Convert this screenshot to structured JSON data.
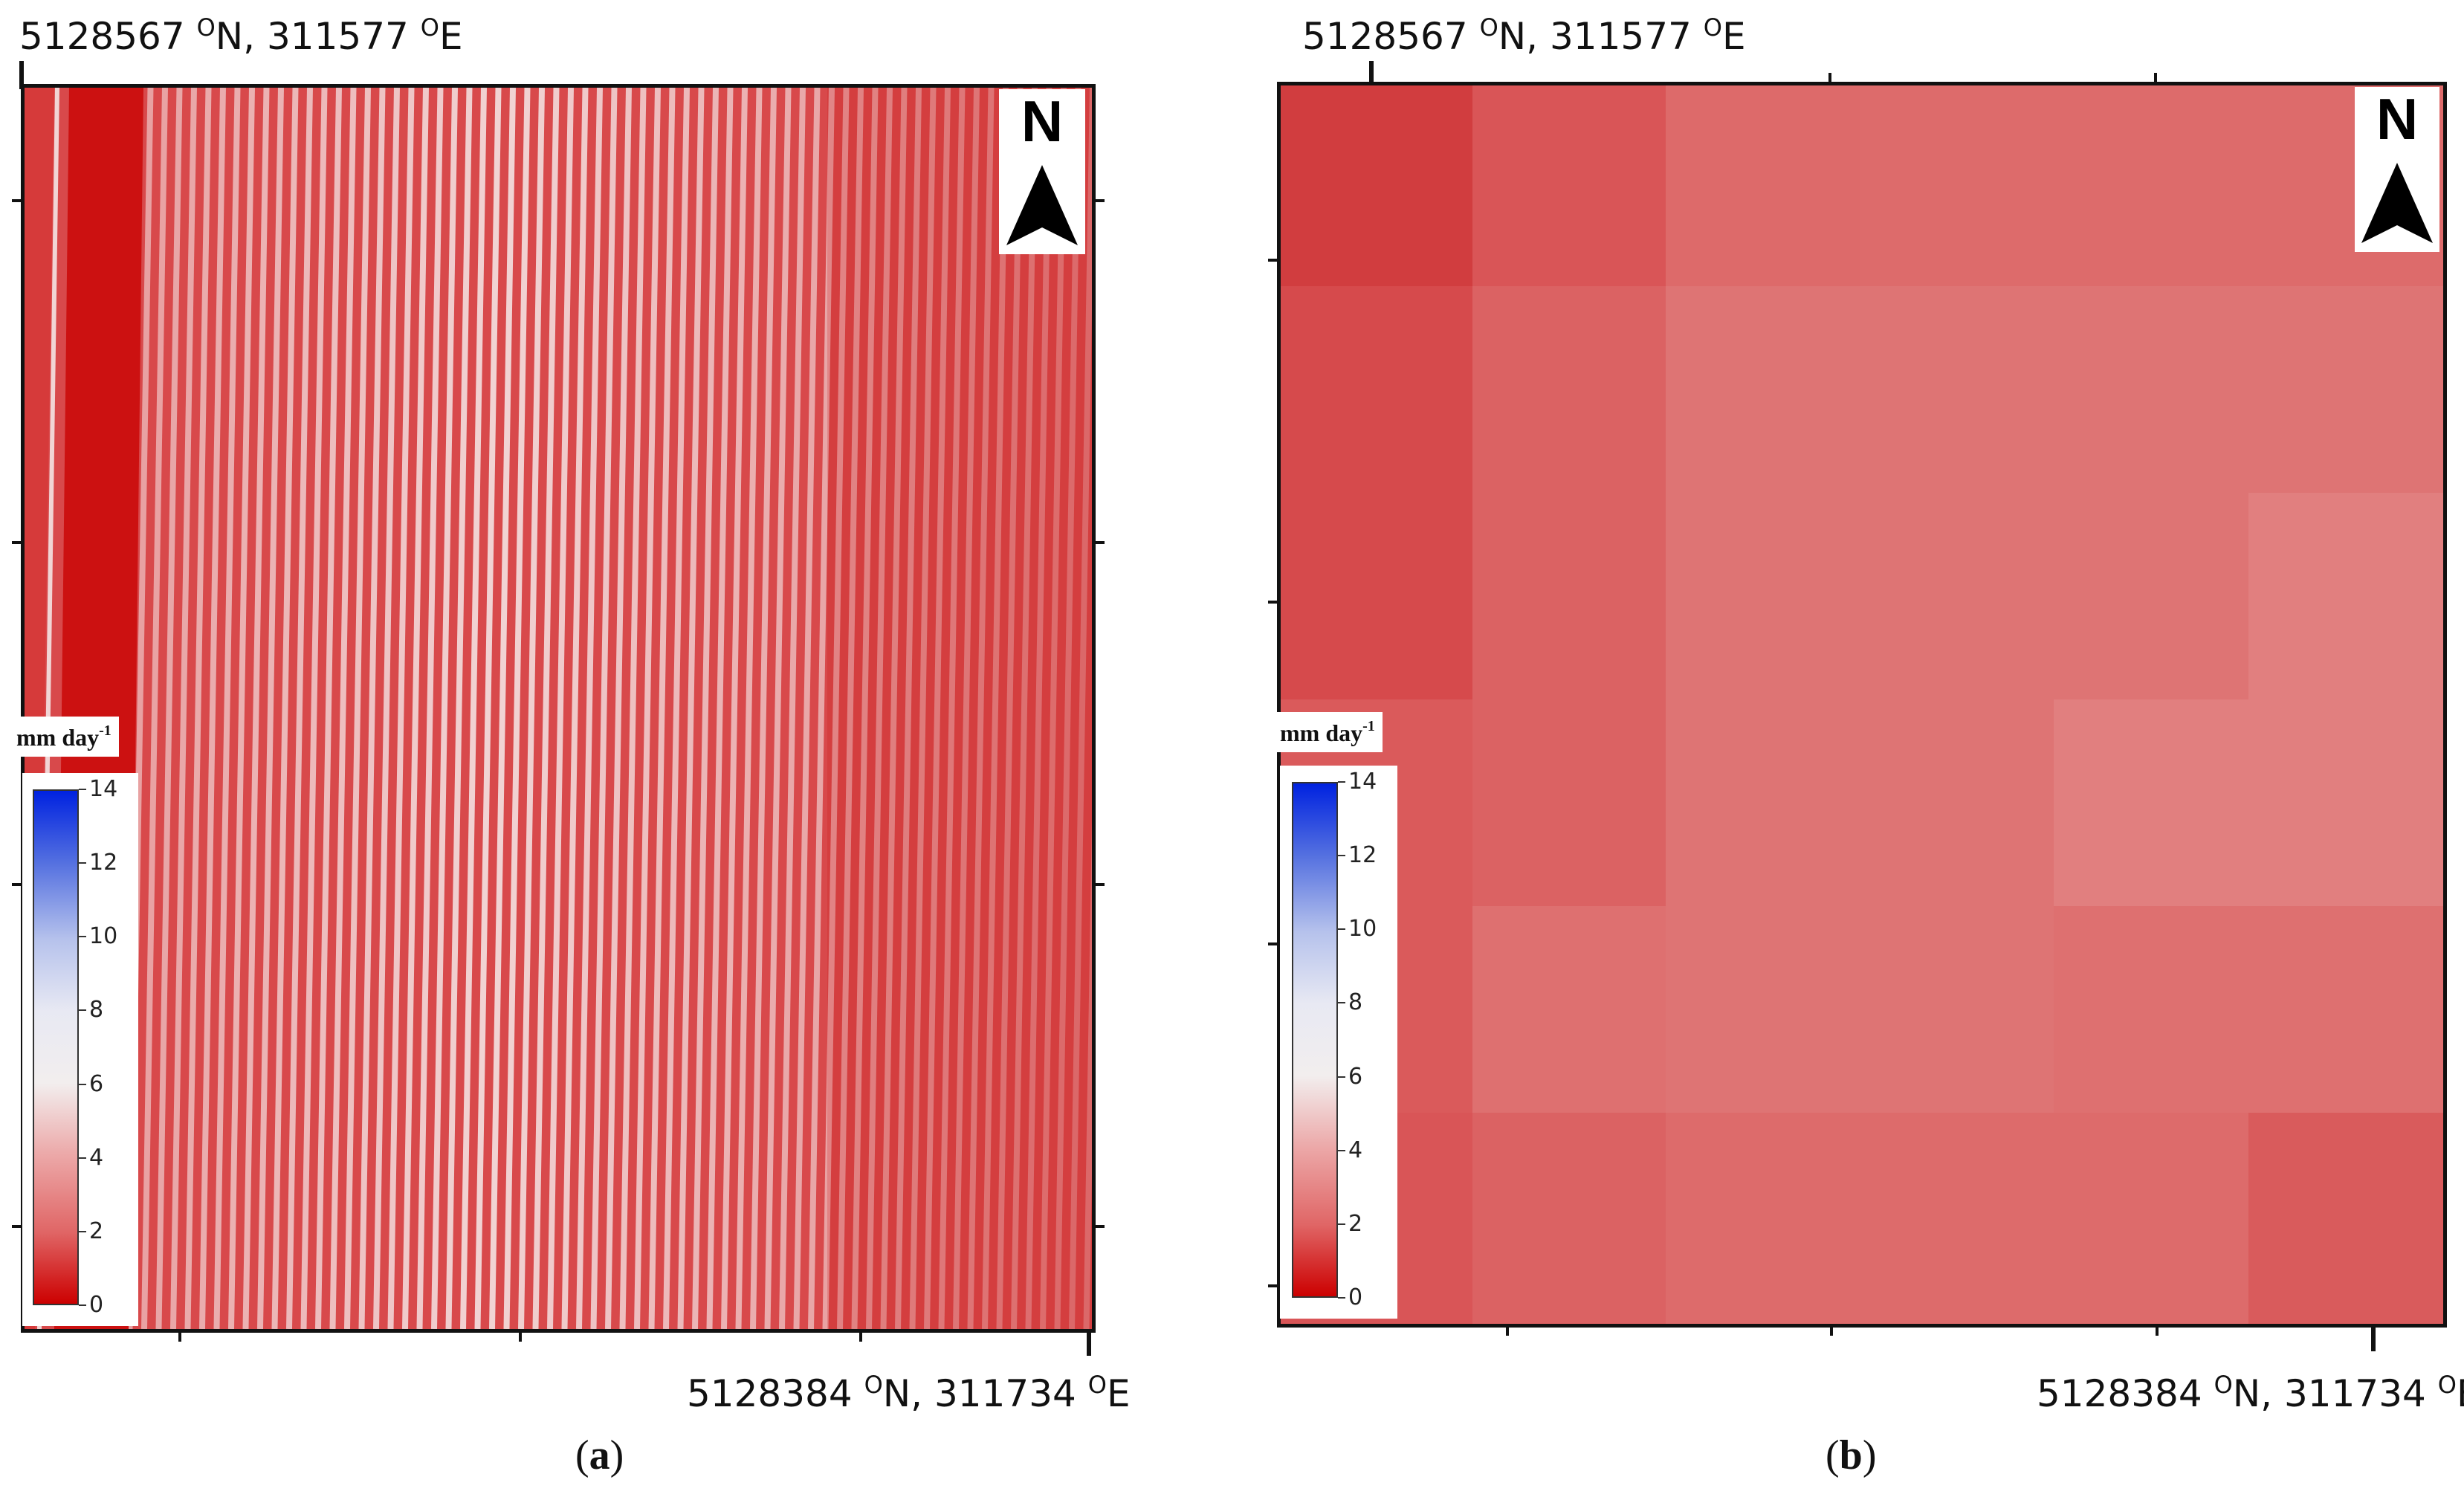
{
  "panels": [
    {
      "id": "a",
      "caption_letter": "a",
      "top_coord": {
        "north": "5128567",
        "east": "311577"
      },
      "bottom_coord": {
        "north": "5128384",
        "east": "311734"
      },
      "degree_mark": "O",
      "north_letter": "N",
      "legend": {
        "unit": "mm day",
        "unit_exp": "-1",
        "ticks": [
          "14",
          "12",
          "10",
          "8",
          "6",
          "4",
          "2",
          "0"
        ],
        "colors": {
          "low": "#cc0000",
          "mid": "#f2eeee",
          "high": "#0022e0"
        }
      },
      "raster": {
        "base_color": "#d8494b",
        "stripe_color": "#f4e4e4",
        "strip_color": "#cc1111"
      }
    },
    {
      "id": "b",
      "caption_letter": "b",
      "top_coord": {
        "north": "5128567",
        "east": "311577"
      },
      "bottom_coord": {
        "north": "5128384",
        "east": "311734"
      },
      "degree_mark": "O",
      "north_letter": "N",
      "legend": {
        "unit": "mm day",
        "unit_exp": "-1",
        "ticks": [
          "14",
          "12",
          "10",
          "8",
          "6",
          "4",
          "2",
          "0"
        ],
        "colors": {
          "low": "#cc0000",
          "mid": "#f2eeee",
          "high": "#0022e0"
        }
      },
      "grid": {
        "rows": 6,
        "cols": 6,
        "cell_colors": [
          [
            "#d13d3f",
            "#d95557",
            "#dd6a6a",
            "#dd6b6b",
            "#dd6b6b",
            "#dd6b6b"
          ],
          [
            "#d64a4c",
            "#db6263",
            "#de7474",
            "#de7474",
            "#de7474",
            "#de7474"
          ],
          [
            "#d64a4c",
            "#db6263",
            "#de7474",
            "#de7474",
            "#de7474",
            "#e17f7f"
          ],
          [
            "#da5a5b",
            "#db6263",
            "#de7474",
            "#de7474",
            "#e17f7f",
            "#e17f7f"
          ],
          [
            "#da5a5b",
            "#de7070",
            "#de7474",
            "#de7474",
            "#de7070",
            "#de7070"
          ],
          [
            "#d95557",
            "#db6263",
            "#dd6b6b",
            "#dd6b6b",
            "#dd6b6b",
            "#d95b5c"
          ]
        ]
      }
    }
  ]
}
